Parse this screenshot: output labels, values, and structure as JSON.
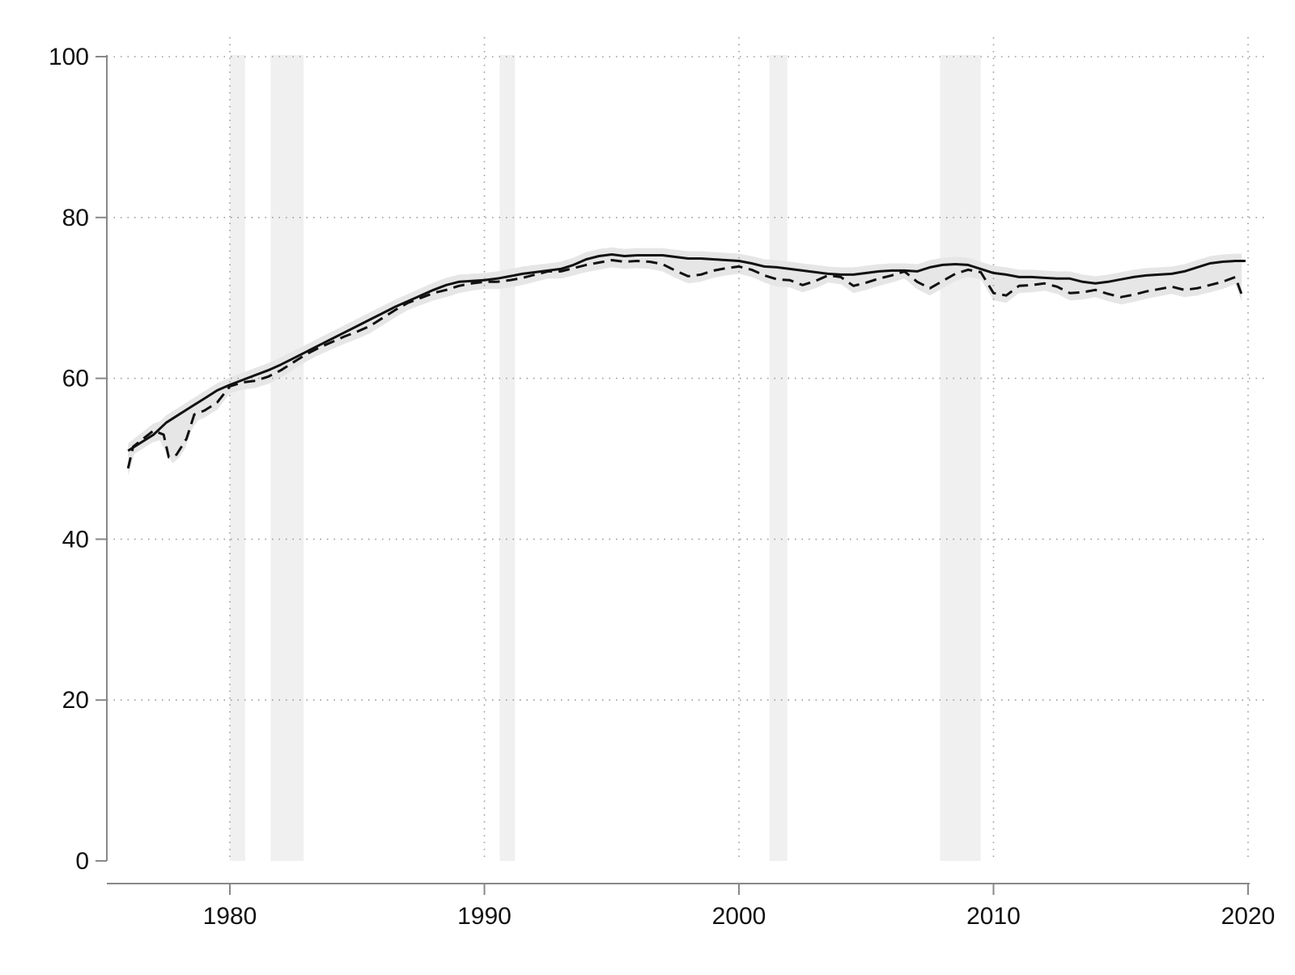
{
  "chart_data": {
    "type": "line",
    "title": "",
    "xlabel": "",
    "ylabel": "",
    "xlim": [
      1976,
      2020
    ],
    "ylim": [
      0,
      100
    ],
    "x_ticks": [
      1980,
      1990,
      2000,
      2010,
      2020
    ],
    "x_tick_labels": [
      "1980",
      "1990",
      "2000",
      "2010",
      "2020"
    ],
    "y_ticks": [
      0,
      20,
      40,
      60,
      80,
      100
    ],
    "y_tick_labels": [
      "0",
      "20",
      "40",
      "60",
      "80",
      "100"
    ],
    "grid": "dotted",
    "legend": "none",
    "shaded_periods": [
      [
        1980.0,
        1980.6
      ],
      [
        1981.6,
        1982.9
      ],
      [
        1990.6,
        1991.2
      ],
      [
        2001.2,
        2001.9
      ],
      [
        2007.9,
        2009.5
      ]
    ],
    "colors": {
      "line": "#111111",
      "band": "#e6e6e6",
      "recession": "#f0f0f0",
      "grid": "#9a9a9a",
      "axis": "#888888"
    },
    "series": [
      {
        "style": "solid",
        "x": [
          1976.0,
          1976.5,
          1977.0,
          1977.5,
          1978.0,
          1978.5,
          1979.0,
          1979.5,
          1980.0,
          1980.5,
          1981.0,
          1981.5,
          1982.0,
          1982.5,
          1983.0,
          1983.5,
          1984.0,
          1984.5,
          1985.0,
          1985.5,
          1986.0,
          1986.5,
          1987.0,
          1987.5,
          1988.0,
          1988.5,
          1989.0,
          1989.5,
          1990.0,
          1990.5,
          1991.0,
          1991.5,
          1992.0,
          1992.5,
          1993.0,
          1993.5,
          1994.0,
          1994.5,
          1995.0,
          1995.5,
          1996.0,
          1996.5,
          1997.0,
          1997.5,
          1998.0,
          1998.5,
          1999.0,
          1999.5,
          2000.0,
          2000.5,
          2001.0,
          2001.5,
          2002.0,
          2002.5,
          2003.0,
          2003.5,
          2004.0,
          2004.5,
          2005.0,
          2005.5,
          2006.0,
          2006.5,
          2007.0,
          2007.5,
          2008.0,
          2008.5,
          2009.0,
          2009.5,
          2010.0,
          2010.5,
          2011.0,
          2011.5,
          2012.0,
          2012.5,
          2013.0,
          2013.5,
          2014.0,
          2014.5,
          2015.0,
          2015.5,
          2016.0,
          2016.5,
          2017.0,
          2017.5,
          2018.0,
          2018.5,
          2019.0,
          2019.5,
          2019.9
        ],
        "y": [
          51.0,
          52.0,
          53.0,
          54.5,
          55.5,
          56.5,
          57.5,
          58.5,
          59.2,
          59.8,
          60.4,
          61.0,
          61.7,
          62.5,
          63.3,
          64.1,
          64.9,
          65.7,
          66.5,
          67.3,
          68.1,
          68.9,
          69.6,
          70.3,
          71.0,
          71.6,
          72.0,
          72.1,
          72.2,
          72.4,
          72.7,
          73.0,
          73.2,
          73.4,
          73.6,
          74.1,
          74.8,
          75.2,
          75.4,
          75.2,
          75.3,
          75.3,
          75.3,
          75.1,
          74.9,
          74.9,
          74.8,
          74.7,
          74.6,
          74.3,
          73.9,
          73.8,
          73.6,
          73.4,
          73.2,
          73.0,
          72.9,
          72.9,
          73.1,
          73.3,
          73.4,
          73.4,
          73.3,
          73.8,
          74.1,
          74.2,
          74.1,
          73.6,
          73.1,
          72.9,
          72.6,
          72.6,
          72.5,
          72.4,
          72.4,
          72.0,
          71.8,
          72.0,
          72.3,
          72.6,
          72.8,
          72.9,
          73.0,
          73.3,
          73.8,
          74.3,
          74.5,
          74.6,
          74.6
        ]
      },
      {
        "style": "dashed",
        "x": [
          1976.0,
          1976.2,
          1976.6,
          1977.0,
          1977.4,
          1977.6,
          1977.9,
          1978.2,
          1978.3,
          1978.6,
          1979.0,
          1979.5,
          1980.0,
          1980.5,
          1981.0,
          1981.5,
          1982.0,
          1982.5,
          1983.0,
          1983.5,
          1984.0,
          1984.5,
          1985.0,
          1985.5,
          1986.0,
          1986.5,
          1987.0,
          1987.5,
          1988.0,
          1988.5,
          1989.0,
          1989.5,
          1990.0,
          1990.5,
          1991.0,
          1991.5,
          1992.0,
          1992.5,
          1993.0,
          1993.5,
          1994.0,
          1994.5,
          1995.0,
          1995.5,
          1996.0,
          1996.5,
          1997.0,
          1997.5,
          1998.0,
          1998.5,
          1999.0,
          1999.5,
          2000.0,
          2000.5,
          2001.0,
          2001.5,
          2002.0,
          2002.5,
          2003.0,
          2003.5,
          2004.0,
          2004.5,
          2005.0,
          2005.5,
          2006.0,
          2006.5,
          2007.0,
          2007.5,
          2008.0,
          2008.5,
          2009.0,
          2009.5,
          2010.0,
          2010.5,
          2011.0,
          2011.5,
          2012.0,
          2012.5,
          2013.0,
          2013.5,
          2014.0,
          2014.5,
          2015.0,
          2015.5,
          2016.0,
          2016.5,
          2017.0,
          2017.5,
          2018.0,
          2018.5,
          2019.0,
          2019.5,
          2019.8
        ],
        "y": [
          48.8,
          51.5,
          52.5,
          53.5,
          53.0,
          50.2,
          50.5,
          52.0,
          52.5,
          55.5,
          56.0,
          57.0,
          59.0,
          59.5,
          59.7,
          60.2,
          61.0,
          62.0,
          63.0,
          63.8,
          64.5,
          65.2,
          65.8,
          66.5,
          67.5,
          68.5,
          69.4,
          70.0,
          70.6,
          71.0,
          71.5,
          71.8,
          72.0,
          72.0,
          72.2,
          72.5,
          72.9,
          73.3,
          73.3,
          73.7,
          74.1,
          74.4,
          74.7,
          74.5,
          74.6,
          74.5,
          74.2,
          73.4,
          72.7,
          72.9,
          73.4,
          73.7,
          73.9,
          73.5,
          72.8,
          72.3,
          72.2,
          71.6,
          72.1,
          72.8,
          72.6,
          71.5,
          71.9,
          72.4,
          72.8,
          73.3,
          72.0,
          71.2,
          72.1,
          73.0,
          73.5,
          73.2,
          70.6,
          70.3,
          71.5,
          71.6,
          71.8,
          71.4,
          70.6,
          70.7,
          71.0,
          70.5,
          70.1,
          70.4,
          70.8,
          71.1,
          71.4,
          71.0,
          71.2,
          71.6,
          72.0,
          72.6,
          70.0
        ]
      }
    ]
  }
}
